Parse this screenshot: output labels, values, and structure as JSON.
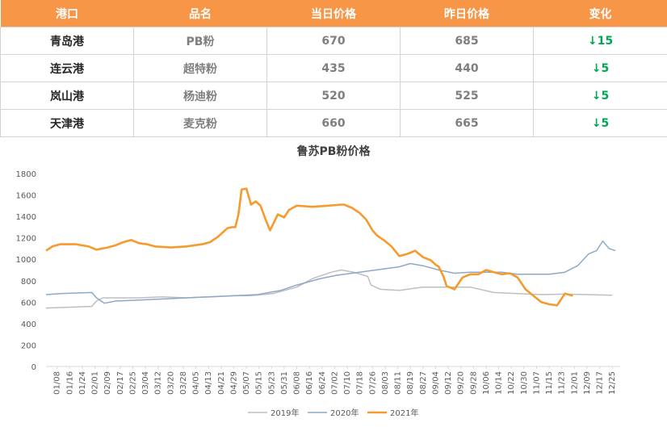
{
  "table": {
    "headers": [
      "港口",
      "品名",
      "当日价格",
      "昨日价格",
      "变化"
    ],
    "rows": [
      {
        "port": "青岛港",
        "product": "PB粉",
        "today": "670",
        "yesterday": "685",
        "change": "↓15"
      },
      {
        "port": "连云港",
        "product": "超特粉",
        "today": "435",
        "yesterday": "440",
        "change": "↓5"
      },
      {
        "port": "岚山港",
        "product": "杨迪粉",
        "today": "520",
        "yesterday": "525",
        "change": "↓5"
      },
      {
        "port": "天津港",
        "product": "麦克粉",
        "today": "660",
        "yesterday": "665",
        "change": "↓5"
      }
    ]
  },
  "colors": {
    "header_bg": "#F79646",
    "down_green": "#00A651",
    "series_2019": "#BFBFBF",
    "series_2020": "#8EA9C8",
    "series_2021": "#F79A2E"
  },
  "chart_data": {
    "type": "line",
    "title": "鲁苏PB粉价格",
    "ylim": [
      0,
      1800
    ],
    "yticks": [
      0,
      200,
      400,
      600,
      800,
      1000,
      1200,
      1400,
      1600,
      1800
    ],
    "x_tick_labels": [
      "01/08",
      "01/16",
      "01/24",
      "02/01",
      "02/09",
      "02/17",
      "02/25",
      "03/04",
      "03/12",
      "03/20",
      "03/28",
      "04/05",
      "04/13",
      "04/21",
      "04/29",
      "05/07",
      "05/15",
      "05/23",
      "05/31",
      "06/08",
      "06/16",
      "06/24",
      "07/02",
      "07/10",
      "07/18",
      "07/26",
      "08/03",
      "08/11",
      "08/19",
      "08/27",
      "09/04",
      "09/12",
      "09/20",
      "09/28",
      "10/06",
      "10/14",
      "10/22",
      "10/30",
      "11/07",
      "11/15",
      "11/23",
      "12/01",
      "12/09",
      "12/17",
      "12/25"
    ],
    "x_unit": "day of year (Jan 1 = 1)",
    "grid": false,
    "legend": "bottom",
    "series": [
      {
        "name": "2019年",
        "color": "#BFBFBF",
        "x": [
          1,
          10,
          30,
          33,
          37,
          48,
          60,
          75,
          90,
          105,
          120,
          130,
          145,
          160,
          170,
          182,
          188,
          196,
          205,
          207,
          213,
          225,
          240,
          255,
          270,
          285,
          300,
          315,
          330,
          345,
          360
        ],
        "y": [
          545,
          550,
          560,
          610,
          640,
          640,
          640,
          650,
          640,
          650,
          660,
          660,
          680,
          740,
          820,
          880,
          900,
          880,
          840,
          760,
          720,
          710,
          740,
          740,
          740,
          690,
          680,
          670,
          675,
          670,
          665
        ]
      },
      {
        "name": "2020年",
        "color": "#8EA9C8",
        "x": [
          1,
          10,
          20,
          30,
          33,
          38,
          45,
          60,
          75,
          90,
          105,
          120,
          135,
          150,
          160,
          175,
          185,
          195,
          210,
          225,
          232,
          240,
          250,
          260,
          270,
          280,
          290,
          300,
          310,
          320,
          330,
          338,
          345,
          350,
          354,
          358,
          362
        ],
        "y": [
          670,
          680,
          685,
          690,
          640,
          590,
          610,
          620,
          630,
          640,
          650,
          660,
          670,
          710,
          760,
          820,
          850,
          870,
          900,
          930,
          960,
          940,
          900,
          870,
          880,
          880,
          880,
          860,
          860,
          860,
          880,
          940,
          1050,
          1080,
          1170,
          1100,
          1080
        ]
      },
      {
        "name": "2021年",
        "color": "#F79A2E",
        "x": [
          1,
          5,
          10,
          20,
          28,
          33,
          40,
          45,
          50,
          55,
          60,
          65,
          70,
          80,
          90,
          100,
          105,
          110,
          113,
          116,
          119,
          121,
          123,
          125,
          128,
          131,
          134,
          137,
          140,
          143,
          148,
          152,
          155,
          160,
          170,
          180,
          188,
          190,
          195,
          200,
          204,
          208,
          211,
          215,
          220,
          225,
          230,
          235,
          240,
          245,
          248,
          250,
          253,
          255,
          260,
          265,
          270,
          275,
          280,
          285,
          290,
          295,
          300,
          305,
          310,
          315,
          320,
          325,
          330,
          335
        ],
        "y": [
          1080,
          1120,
          1140,
          1140,
          1120,
          1090,
          1110,
          1130,
          1160,
          1180,
          1150,
          1140,
          1120,
          1110,
          1120,
          1140,
          1160,
          1210,
          1250,
          1290,
          1300,
          1300,
          1420,
          1650,
          1660,
          1510,
          1540,
          1500,
          1380,
          1270,
          1420,
          1390,
          1460,
          1500,
          1490,
          1500,
          1510,
          1510,
          1480,
          1430,
          1370,
          1270,
          1220,
          1180,
          1120,
          1030,
          1050,
          1080,
          1020,
          990,
          950,
          930,
          840,
          750,
          720,
          830,
          860,
          860,
          900,
          880,
          860,
          870,
          830,
          720,
          660,
          600,
          580,
          570,
          680,
          660
        ]
      }
    ]
  }
}
